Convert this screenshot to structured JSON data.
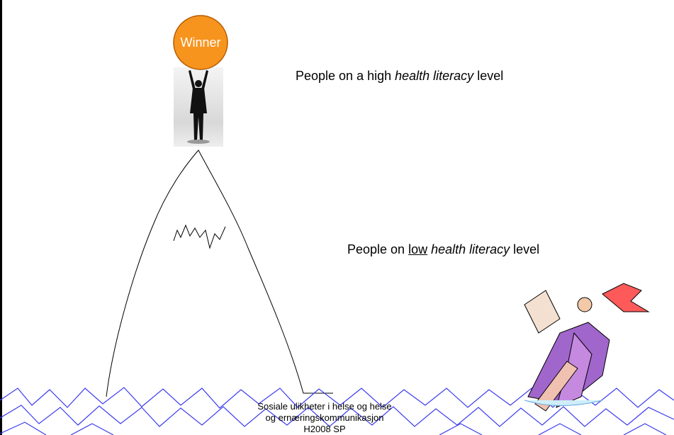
{
  "circle_label": "Winner",
  "high_text": {
    "before": "People on a high ",
    "italic": "health literacy",
    "after": " level"
  },
  "low_text": {
    "before": "People on ",
    "underlined": "low",
    "italic": "health literacy",
    "after": " level"
  },
  "footer": [
    "Sosiale ulikheter i helse og helse",
    "og ernæringskommunikasjon",
    "H2008 SP"
  ]
}
